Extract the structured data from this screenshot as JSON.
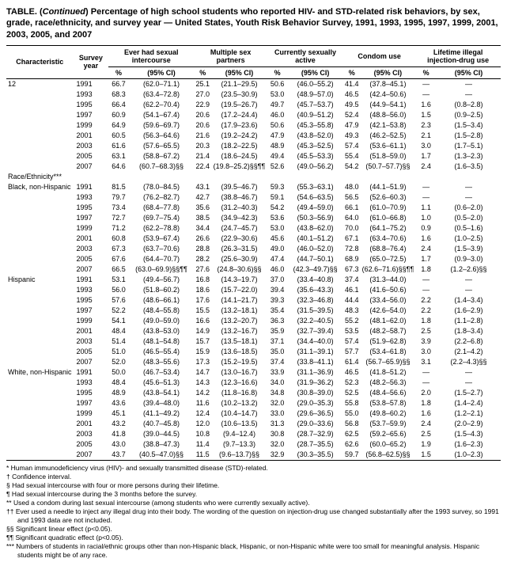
{
  "title_prefix": "TABLE. (",
  "title_cont": "Continued",
  "title_rest": ") Percentage of high school students who reported HIV- and STD-related risk behaviors, by sex, grade, race/ethnicity, and survey year — United States, Youth Risk Behavior Survey, 1991, 1993, 1995, 1997, 1999, 2001, 2003, 2005, and 2007",
  "headers": {
    "char": "Characteristic",
    "survey": "Survey year",
    "ever": "Ever had sexual intercourse",
    "mult": "Multiple sex partners",
    "curr": "Currently sexually active",
    "condom": "Condom use",
    "life": "Lifetime illegal injection-drug use",
    "pct": "%",
    "ci": "(95% CI)"
  },
  "groups": [
    {
      "label": "12",
      "rows": [
        {
          "y": "1991",
          "e_p": "66.7",
          "e_ci": "(62.0–71.1)",
          "m_p": "25.1",
          "m_ci": "(21.1–29.5)",
          "c_p": "50.6",
          "c_ci": "(46.0–55.2)",
          "co_p": "41.4",
          "co_ci": "(37.8–45.1)",
          "l_p": "—",
          "l_ci": "—"
        },
        {
          "y": "1993",
          "e_p": "68.3",
          "e_ci": "(63.4–72.8)",
          "m_p": "27.0",
          "m_ci": "(23.5–30.9)",
          "c_p": "53.0",
          "c_ci": "(48.9–57.0)",
          "co_p": "46.5",
          "co_ci": "(42.4–50.6)",
          "l_p": "—",
          "l_ci": "—"
        },
        {
          "y": "1995",
          "e_p": "66.4",
          "e_ci": "(62.2–70.4)",
          "m_p": "22.9",
          "m_ci": "(19.5–26.7)",
          "c_p": "49.7",
          "c_ci": "(45.7–53.7)",
          "co_p": "49.5",
          "co_ci": "(44.9–54.1)",
          "l_p": "1.6",
          "l_ci": "(0.8–2.8)"
        },
        {
          "y": "1997",
          "e_p": "60.9",
          "e_ci": "(54.1–67.4)",
          "m_p": "20.6",
          "m_ci": "(17.2–24.4)",
          "c_p": "46.0",
          "c_ci": "(40.9–51.2)",
          "co_p": "52.4",
          "co_ci": "(48.8–56.0)",
          "l_p": "1.5",
          "l_ci": "(0.9–2.5)"
        },
        {
          "y": "1999",
          "e_p": "64.9",
          "e_ci": "(59.6–69.7)",
          "m_p": "20.6",
          "m_ci": "(17.9–23.6)",
          "c_p": "50.6",
          "c_ci": "(45.3–55.8)",
          "co_p": "47.9",
          "co_ci": "(42.1–53.8)",
          "l_p": "2.3",
          "l_ci": "(1.5–3.4)"
        },
        {
          "y": "2001",
          "e_p": "60.5",
          "e_ci": "(56.3–64.6)",
          "m_p": "21.6",
          "m_ci": "(19.2–24.2)",
          "c_p": "47.9",
          "c_ci": "(43.8–52.0)",
          "co_p": "49.3",
          "co_ci": "(46.2–52.5)",
          "l_p": "2.1",
          "l_ci": "(1.5–2.8)"
        },
        {
          "y": "2003",
          "e_p": "61.6",
          "e_ci": "(57.6–65.5)",
          "m_p": "20.3",
          "m_ci": "(18.2–22.5)",
          "c_p": "48.9",
          "c_ci": "(45.3–52.5)",
          "co_p": "57.4",
          "co_ci": "(53.6–61.1)",
          "l_p": "3.0",
          "l_ci": "(1.7–5.1)"
        },
        {
          "y": "2005",
          "e_p": "63.1",
          "e_ci": "(58.8–67.2)",
          "m_p": "21.4",
          "m_ci": "(18.6–24.5)",
          "c_p": "49.4",
          "c_ci": "(45.5–53.3)",
          "co_p": "55.4",
          "co_ci": "(51.8–59.0)",
          "l_p": "1.7",
          "l_ci": "(1.3–2.3)"
        },
        {
          "y": "2007",
          "e_p": "64.6",
          "e_ci": "(60.7–68.3)§§",
          "m_p": "22.4",
          "m_ci": "(19.8–25.2)§§¶¶",
          "c_p": "52.6",
          "c_ci": "(49.0–56.2)",
          "co_p": "54.2",
          "co_ci": "(50.7–57.7)§§",
          "l_p": "2.4",
          "l_ci": "(1.6–3.5)"
        }
      ]
    },
    {
      "label": "Race/Ethnicity***",
      "rows": []
    },
    {
      "label": "Black, non-Hispanic",
      "rows": [
        {
          "y": "1991",
          "e_p": "81.5",
          "e_ci": "(78.0–84.5)",
          "m_p": "43.1",
          "m_ci": "(39.5–46.7)",
          "c_p": "59.3",
          "c_ci": "(55.3–63.1)",
          "co_p": "48.0",
          "co_ci": "(44.1–51.9)",
          "l_p": "—",
          "l_ci": "—"
        },
        {
          "y": "1993",
          "e_p": "79.7",
          "e_ci": "(76.2–82.7)",
          "m_p": "42.7",
          "m_ci": "(38.8–46.7)",
          "c_p": "59.1",
          "c_ci": "(54.6–63.5)",
          "co_p": "56.5",
          "co_ci": "(52.6–60.3)",
          "l_p": "—",
          "l_ci": "—"
        },
        {
          "y": "1995",
          "e_p": "73.4",
          "e_ci": "(68.4–77.8)",
          "m_p": "35.6",
          "m_ci": "(31.2–40.3)",
          "c_p": "54.2",
          "c_ci": "(49.4–59.0)",
          "co_p": "66.1",
          "co_ci": "(61.0–70.9)",
          "l_p": "1.1",
          "l_ci": "(0.6–2.0)"
        },
        {
          "y": "1997",
          "e_p": "72.7",
          "e_ci": "(69.7–75.4)",
          "m_p": "38.5",
          "m_ci": "(34.9–42.3)",
          "c_p": "53.6",
          "c_ci": "(50.3–56.9)",
          "co_p": "64.0",
          "co_ci": "(61.0–66.8)",
          "l_p": "1.0",
          "l_ci": "(0.5–2.0)"
        },
        {
          "y": "1999",
          "e_p": "71.2",
          "e_ci": "(62.2–78.8)",
          "m_p": "34.4",
          "m_ci": "(24.7–45.7)",
          "c_p": "53.0",
          "c_ci": "(43.8–62.0)",
          "co_p": "70.0",
          "co_ci": "(64.1–75.2)",
          "l_p": "0.9",
          "l_ci": "(0.5–1.6)"
        },
        {
          "y": "2001",
          "e_p": "60.8",
          "e_ci": "(53.9–67.4)",
          "m_p": "26.6",
          "m_ci": "(22.9–30.6)",
          "c_p": "45.6",
          "c_ci": "(40.1–51.2)",
          "co_p": "67.1",
          "co_ci": "(63.4–70.6)",
          "l_p": "1.6",
          "l_ci": "(1.0–2.5)"
        },
        {
          "y": "2003",
          "e_p": "67.3",
          "e_ci": "(63.7–70.6)",
          "m_p": "28.8",
          "m_ci": "(26.3–31.5)",
          "c_p": "49.0",
          "c_ci": "(46.0–52.0)",
          "co_p": "72.8",
          "co_ci": "(68.8–76.4)",
          "l_p": "2.4",
          "l_ci": "(1.5–3.9)"
        },
        {
          "y": "2005",
          "e_p": "67.6",
          "e_ci": "(64.4–70.7)",
          "m_p": "28.2",
          "m_ci": "(25.6–30.9)",
          "c_p": "47.4",
          "c_ci": "(44.7–50.1)",
          "co_p": "68.9",
          "co_ci": "(65.0–72.5)",
          "l_p": "1.7",
          "l_ci": "(0.9–3.0)"
        },
        {
          "y": "2007",
          "e_p": "66.5",
          "e_ci": "(63.0–69.9)§§¶¶",
          "m_p": "27.6",
          "m_ci": "(24.8–30.6)§§",
          "c_p": "46.0",
          "c_ci": "(42.3–49.7)§§",
          "co_p": "67.3",
          "co_ci": "(62.6–71.6)§§¶¶",
          "l_p": "1.8",
          "l_ci": "(1.2–2.6)§§"
        }
      ]
    },
    {
      "label": "Hispanic",
      "rows": [
        {
          "y": "1991",
          "e_p": "53.1",
          "e_ci": "(49.4–56.7)",
          "m_p": "16.8",
          "m_ci": "(14.3–19.7)",
          "c_p": "37.0",
          "c_ci": "(33.4–40.8)",
          "co_p": "37.4",
          "co_ci": "(31.3–44.0)",
          "l_p": "—",
          "l_ci": "—"
        },
        {
          "y": "1993",
          "e_p": "56.0",
          "e_ci": "(51.8–60.2)",
          "m_p": "18.6",
          "m_ci": "(15.7–22.0)",
          "c_p": "39.4",
          "c_ci": "(35.6–43.3)",
          "co_p": "46.1",
          "co_ci": "(41.6–50.6)",
          "l_p": "—",
          "l_ci": "—"
        },
        {
          "y": "1995",
          "e_p": "57.6",
          "e_ci": "(48.6–66.1)",
          "m_p": "17.6",
          "m_ci": "(14.1–21.7)",
          "c_p": "39.3",
          "c_ci": "(32.3–46.8)",
          "co_p": "44.4",
          "co_ci": "(33.4–56.0)",
          "l_p": "2.2",
          "l_ci": "(1.4–3.4)"
        },
        {
          "y": "1997",
          "e_p": "52.2",
          "e_ci": "(48.4–55.8)",
          "m_p": "15.5",
          "m_ci": "(13.2–18.1)",
          "c_p": "35.4",
          "c_ci": "(31.5–39.5)",
          "co_p": "48.3",
          "co_ci": "(42.6–54.0)",
          "l_p": "2.2",
          "l_ci": "(1.6–2.9)"
        },
        {
          "y": "1999",
          "e_p": "54.1",
          "e_ci": "(49.0–59.0)",
          "m_p": "16.6",
          "m_ci": "(13.2–20.7)",
          "c_p": "36.3",
          "c_ci": "(32.2–40.5)",
          "co_p": "55.2",
          "co_ci": "(48.1–62.0)",
          "l_p": "1.8",
          "l_ci": "(1.1–2.8)"
        },
        {
          "y": "2001",
          "e_p": "48.4",
          "e_ci": "(43.8–53.0)",
          "m_p": "14.9",
          "m_ci": "(13.2–16.7)",
          "c_p": "35.9",
          "c_ci": "(32.7–39.4)",
          "co_p": "53.5",
          "co_ci": "(48.2–58.7)",
          "l_p": "2.5",
          "l_ci": "(1.8–3.4)"
        },
        {
          "y": "2003",
          "e_p": "51.4",
          "e_ci": "(48.1–54.8)",
          "m_p": "15.7",
          "m_ci": "(13.5–18.1)",
          "c_p": "37.1",
          "c_ci": "(34.4–40.0)",
          "co_p": "57.4",
          "co_ci": "(51.9–62.8)",
          "l_p": "3.9",
          "l_ci": "(2.2–6.8)"
        },
        {
          "y": "2005",
          "e_p": "51.0",
          "e_ci": "(46.5–55.4)",
          "m_p": "15.9",
          "m_ci": "(13.6–18.5)",
          "c_p": "35.0",
          "c_ci": "(31.1–39.1)",
          "co_p": "57.7",
          "co_ci": "(53.4–61.8)",
          "l_p": "3.0",
          "l_ci": "(2.1–4.2)"
        },
        {
          "y": "2007",
          "e_p": "52.0",
          "e_ci": "(48.3–55.6)",
          "m_p": "17.3",
          "m_ci": "(15.2–19.5)",
          "c_p": "37.4",
          "c_ci": "(33.8–41.1)",
          "co_p": "61.4",
          "co_ci": "(56.7–65.9)§§",
          "l_p": "3.1",
          "l_ci": "(2.2–4.3)§§"
        }
      ]
    },
    {
      "label": "White, non-Hispanic",
      "rows": [
        {
          "y": "1991",
          "e_p": "50.0",
          "e_ci": "(46.7–53.4)",
          "m_p": "14.7",
          "m_ci": "(13.0–16.7)",
          "c_p": "33.9",
          "c_ci": "(31.1–36.9)",
          "co_p": "46.5",
          "co_ci": "(41.8–51.2)",
          "l_p": "—",
          "l_ci": "—"
        },
        {
          "y": "1993",
          "e_p": "48.4",
          "e_ci": "(45.6–51.3)",
          "m_p": "14.3",
          "m_ci": "(12.3–16.6)",
          "c_p": "34.0",
          "c_ci": "(31.9–36.2)",
          "co_p": "52.3",
          "co_ci": "(48.2–56.3)",
          "l_p": "—",
          "l_ci": "—"
        },
        {
          "y": "1995",
          "e_p": "48.9",
          "e_ci": "(43.8–54.1)",
          "m_p": "14.2",
          "m_ci": "(11.8–16.8)",
          "c_p": "34.8",
          "c_ci": "(30.8–39.0)",
          "co_p": "52.5",
          "co_ci": "(48.4–56.6)",
          "l_p": "2.0",
          "l_ci": "(1.5–2.7)"
        },
        {
          "y": "1997",
          "e_p": "43.6",
          "e_ci": "(39.4–48.0)",
          "m_p": "11.6",
          "m_ci": "(10.2–13.2)",
          "c_p": "32.0",
          "c_ci": "(29.0–35.3)",
          "co_p": "55.8",
          "co_ci": "(53.8–57.8)",
          "l_p": "1.8",
          "l_ci": "(1.4–2.4)"
        },
        {
          "y": "1999",
          "e_p": "45.1",
          "e_ci": "(41.1–49.2)",
          "m_p": "12.4",
          "m_ci": "(10.4–14.7)",
          "c_p": "33.0",
          "c_ci": "(29.6–36.5)",
          "co_p": "55.0",
          "co_ci": "(49.8–60.2)",
          "l_p": "1.6",
          "l_ci": "(1.2–2.1)"
        },
        {
          "y": "2001",
          "e_p": "43.2",
          "e_ci": "(40.7–45.8)",
          "m_p": "12.0",
          "m_ci": "(10.6–13.5)",
          "c_p": "31.3",
          "c_ci": "(29.0–33.6)",
          "co_p": "56.8",
          "co_ci": "(53.7–59.9)",
          "l_p": "2.4",
          "l_ci": "(2.0–2.9)"
        },
        {
          "y": "2003",
          "e_p": "41.8",
          "e_ci": "(39.0–44.5)",
          "m_p": "10.8",
          "m_ci": "(9.4–12.4)",
          "c_p": "30.8",
          "c_ci": "(28.7–32.9)",
          "co_p": "62.5",
          "co_ci": "(59.2–65.6)",
          "l_p": "2.5",
          "l_ci": "(1.5–4.3)"
        },
        {
          "y": "2005",
          "e_p": "43.0",
          "e_ci": "(38.8–47.3)",
          "m_p": "11.4",
          "m_ci": "(9.7–13.3)",
          "c_p": "32.0",
          "c_ci": "(28.7–35.5)",
          "co_p": "62.6",
          "co_ci": "(60.0–65.2)",
          "l_p": "1.9",
          "l_ci": "(1.6–2.3)"
        },
        {
          "y": "2007",
          "e_p": "43.7",
          "e_ci": "(40.5–47.0)§§",
          "m_p": "11.5",
          "m_ci": "(9.6–13.7)§§",
          "c_p": "32.9",
          "c_ci": "(30.3–35.5)",
          "co_p": "59.7",
          "co_ci": "(56.8–62.5)§§",
          "l_p": "1.5",
          "l_ci": "(1.0–2.3)"
        }
      ]
    }
  ],
  "footnotes": [
    "* Human immunodeficiency virus (HIV)- and sexually transmitted disease (STD)-related.",
    "† Confidence interval.",
    "§ Had sexual intercourse with four or more persons during their lifetime.",
    "¶ Had sexual intercourse during the 3 months before the survey.",
    "** Used a condom during last sexual intercourse (among students who were currently sexually active).",
    "†† Ever used a needle to inject any illegal drug into their body. The wording of the question on injection-drug use changed substantially after the 1993 survey, so 1991 and 1993 data are not included.",
    "§§ Significant linear effect (p<0.05).",
    "¶¶ Significant quadratic effect (p<0.05).",
    "*** Numbers of students in racial/ethnic groups other than non-Hispanic black, Hispanic, or non-Hispanic white were too small for meaningful analysis. Hispanic students might be of any race."
  ]
}
